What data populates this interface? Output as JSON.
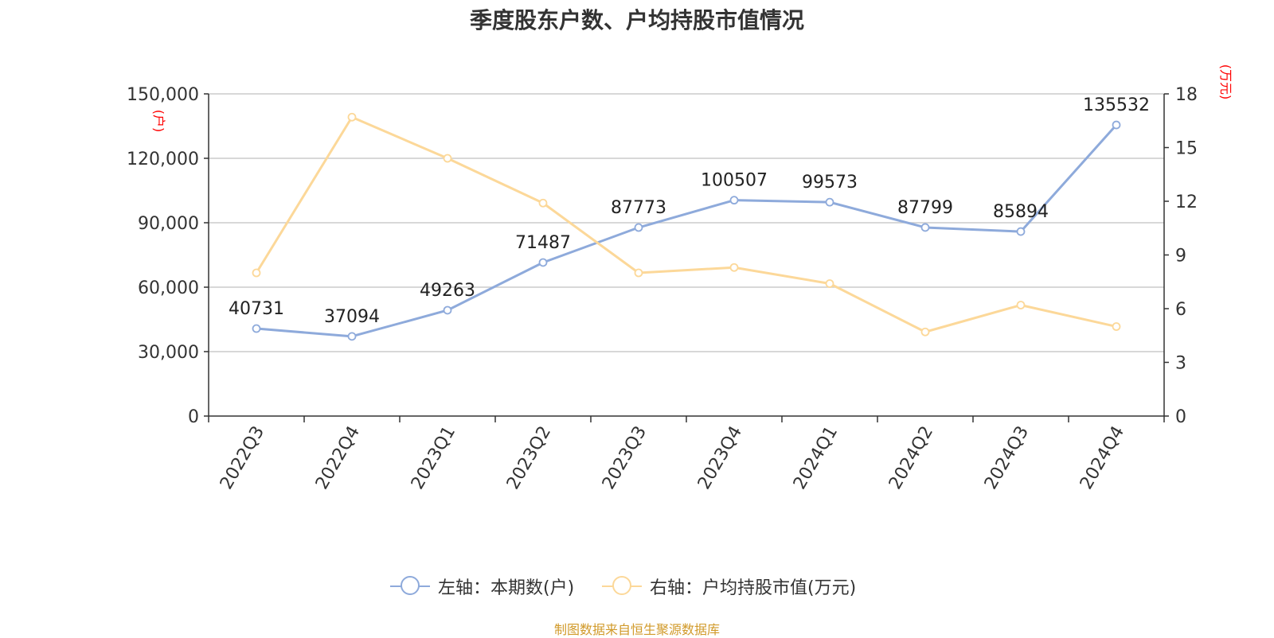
{
  "chart_data": {
    "type": "line",
    "title": "季度股东户数、户均持股市值情况",
    "categories": [
      "2022Q3",
      "2022Q4",
      "2023Q1",
      "2023Q2",
      "2023Q3",
      "2023Q4",
      "2024Q1",
      "2024Q2",
      "2024Q3",
      "2024Q4"
    ],
    "left_axis": {
      "unit": "(户)",
      "min": 0,
      "max": 150000,
      "ticks": [
        "0",
        "30,000",
        "60,000",
        "90,000",
        "120,000",
        "150,000"
      ],
      "tick_values": [
        0,
        30000,
        60000,
        90000,
        120000,
        150000
      ]
    },
    "right_axis": {
      "unit": "(万元)",
      "min": 0,
      "max": 18,
      "ticks": [
        "0",
        "3",
        "6",
        "9",
        "12",
        "15",
        "18"
      ],
      "tick_values": [
        0,
        3,
        6,
        9,
        12,
        15,
        18
      ]
    },
    "series": [
      {
        "name": "左轴：本期数(户)",
        "axis": "left",
        "color": "#8eaadb",
        "values": [
          40731,
          37094,
          49263,
          71487,
          87773,
          100507,
          99573,
          87799,
          85894,
          135532
        ],
        "labels": [
          "40731",
          "37094",
          "49263",
          "71487",
          "87773",
          "100507",
          "99573",
          "87799",
          "85894",
          "135532"
        ]
      },
      {
        "name": "右轴：户均持股市值(万元)",
        "axis": "right",
        "color": "#fcd899",
        "values": [
          8.0,
          16.7,
          14.4,
          11.9,
          8.0,
          8.3,
          7.4,
          4.7,
          6.2,
          5.0
        ]
      }
    ],
    "grid": true,
    "legend_position": "bottom"
  },
  "source": "制图数据来自恒生聚源数据库",
  "colors": {
    "source": "#d19a2a",
    "unit_label": "#ff0000",
    "grid": "#cccccc",
    "axis": "#333333"
  }
}
